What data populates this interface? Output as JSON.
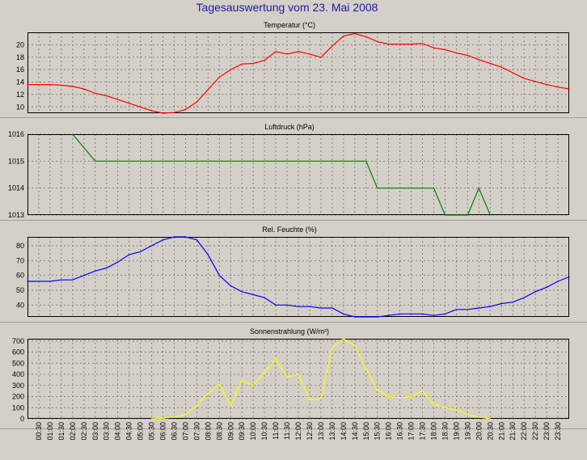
{
  "title": "Tagesauswertung vom 23. Mai 2008",
  "x_labels": [
    "00:30",
    "01:00",
    "01:30",
    "02:00",
    "02:30",
    "03:00",
    "03:30",
    "04:00",
    "04:30",
    "05:00",
    "05:30",
    "06:00",
    "06:30",
    "07:00",
    "07:30",
    "08:00",
    "08:30",
    "09:00",
    "09:30",
    "10:00",
    "10:30",
    "11:00",
    "11:30",
    "12:00",
    "12:30",
    "13:00",
    "13:30",
    "14:00",
    "14:30",
    "15:00",
    "15:30",
    "16:00",
    "16:30",
    "17:00",
    "17:30",
    "18:00",
    "18:30",
    "19:00",
    "19:30",
    "20:00",
    "20:30",
    "21:00",
    "21:30",
    "22:00",
    "22:30",
    "23:00",
    "23:30"
  ],
  "chart_data": [
    {
      "type": "line",
      "title": "Temperatur (°C)",
      "color": "#ff0000",
      "ylim": [
        9,
        22
      ],
      "yticks": [
        10,
        12,
        14,
        16,
        18,
        20
      ],
      "x": [
        "00:00",
        "00:30",
        "01:00",
        "01:30",
        "02:00",
        "02:30",
        "03:00",
        "03:30",
        "04:00",
        "04:30",
        "05:00",
        "05:30",
        "06:00",
        "06:30",
        "07:00",
        "07:30",
        "08:00",
        "08:30",
        "09:00",
        "09:30",
        "10:00",
        "10:30",
        "11:00",
        "11:30",
        "12:00",
        "12:30",
        "13:00",
        "13:30",
        "14:00",
        "14:30",
        "15:00",
        "15:30",
        "16:00",
        "16:30",
        "17:00",
        "17:30",
        "18:00",
        "18:30",
        "19:00",
        "19:30",
        "20:00",
        "20:30",
        "21:00",
        "21:30",
        "22:00",
        "22:30",
        "23:00",
        "23:30",
        "24:00"
      ],
      "values": [
        13.6,
        13.6,
        13.6,
        13.5,
        13.3,
        12.9,
        12.2,
        11.8,
        11.2,
        10.6,
        10.0,
        9.4,
        9.0,
        9.1,
        9.6,
        10.8,
        12.8,
        14.8,
        16.0,
        16.9,
        17.0,
        17.5,
        18.9,
        18.5,
        18.9,
        18.5,
        18.0,
        19.8,
        21.4,
        21.8,
        21.3,
        20.5,
        20.1,
        20.1,
        20.1,
        20.2,
        19.5,
        19.2,
        18.7,
        18.3,
        17.6,
        17.0,
        16.4,
        15.5,
        14.6,
        14.1,
        13.6,
        13.2,
        12.9
      ]
    },
    {
      "type": "line",
      "title": "Luftdruck (hPa)",
      "color": "#008000",
      "ylim": [
        1013,
        1016
      ],
      "yticks": [
        1013,
        1014,
        1015,
        1016
      ],
      "x": [
        "02:00",
        "03:00",
        "15:00",
        "15:30",
        "18:00",
        "18:30",
        "19:30",
        "20:00",
        "20:30"
      ],
      "values": [
        1016,
        1015,
        1015,
        1014,
        1014,
        1013,
        1013,
        1014,
        1013
      ]
    },
    {
      "type": "line",
      "title": "Rel. Feuchte (%)",
      "color": "#0000ff",
      "ylim": [
        32,
        86
      ],
      "yticks": [
        40,
        50,
        60,
        70,
        80
      ],
      "x": [
        "00:00",
        "00:30",
        "01:00",
        "01:30",
        "02:00",
        "02:30",
        "03:00",
        "03:30",
        "04:00",
        "04:30",
        "05:00",
        "05:30",
        "06:00",
        "06:30",
        "07:00",
        "07:30",
        "08:00",
        "08:30",
        "09:00",
        "09:30",
        "10:00",
        "10:30",
        "11:00",
        "11:30",
        "12:00",
        "12:30",
        "13:00",
        "13:30",
        "14:00",
        "14:30",
        "15:00",
        "15:30",
        "16:00",
        "16:30",
        "17:00",
        "17:30",
        "18:00",
        "18:30",
        "19:00",
        "19:30",
        "20:00",
        "20:30",
        "21:00",
        "21:30",
        "22:00",
        "22:30",
        "23:00",
        "23:30",
        "24:00"
      ],
      "values": [
        56,
        56,
        56,
        57,
        57,
        60,
        63,
        65,
        69,
        74,
        76,
        80,
        84,
        86,
        86,
        84,
        74,
        60,
        53,
        49,
        47,
        45,
        40,
        40,
        39,
        39,
        38,
        38,
        34,
        32,
        32,
        32,
        33,
        34,
        34,
        34,
        33,
        34,
        37,
        37,
        38,
        39,
        41,
        42,
        45,
        49,
        52,
        56,
        59
      ]
    },
    {
      "type": "line",
      "title": "Sonnenstrahlung (W/m²)",
      "color": "#ffff00",
      "ylim": [
        0,
        720
      ],
      "yticks": [
        0,
        100,
        200,
        300,
        400,
        500,
        600,
        700
      ],
      "x": [
        "05:30",
        "06:00",
        "06:30",
        "07:00",
        "07:30",
        "08:00",
        "08:30",
        "09:00",
        "09:30",
        "10:00",
        "10:30",
        "11:00",
        "11:30",
        "12:00",
        "12:30",
        "13:00",
        "13:30",
        "14:00",
        "14:30",
        "15:00",
        "15:30",
        "16:00",
        "16:30",
        "17:00",
        "17:30",
        "18:00",
        "18:30",
        "19:00",
        "19:30",
        "20:00",
        "20:30"
      ],
      "values": [
        0,
        5,
        15,
        40,
        120,
        230,
        310,
        120,
        350,
        300,
        420,
        540,
        380,
        400,
        170,
        180,
        640,
        720,
        660,
        450,
        260,
        200,
        190,
        200,
        250,
        130,
        100,
        80,
        40,
        15,
        0
      ]
    }
  ]
}
